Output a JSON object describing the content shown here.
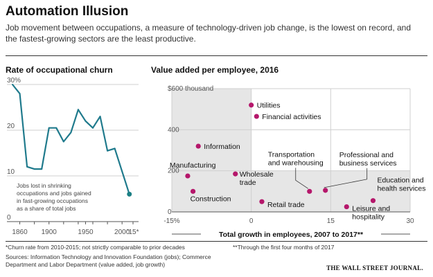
{
  "title": "Automation Illusion",
  "subtitle": "Job movement between occupations, a measure of technology-driven job change, is the lowest on record, and the fastest-growing sectors are the least productive.",
  "footnotes": {
    "churn": "*Churn rate from 2010-2015; not strictly comparable to prior decades",
    "growth": "**Through the first four months of 2017",
    "sources": "Sources: Information Technology and Innovation Foundation (jobs); Commerce Department and Labor Department (value added, job growth)"
  },
  "credit": "THE WALL STREET JOURNAL.",
  "chart_data": [
    {
      "type": "line",
      "title": "Rate of occupational churn",
      "x": [
        1850,
        1860,
        1870,
        1880,
        1890,
        1900,
        1910,
        1920,
        1930,
        1940,
        1950,
        1960,
        1970,
        1980,
        1990,
        2000,
        2010
      ],
      "y": [
        30,
        28,
        12,
        11.5,
        11.5,
        20.5,
        20.5,
        17.5,
        19.5,
        24.5,
        22,
        20.5,
        23,
        15.5,
        16,
        11,
        6
      ],
      "x_ticks": [
        "1860",
        "'80",
        "1900",
        "'20",
        "'40",
        "1950",
        "'60",
        "'80",
        "2000",
        "'15*"
      ],
      "y_ticks": [
        "0",
        "10",
        "20",
        "30%"
      ],
      "ylim": [
        0,
        30
      ],
      "color": "#1f7a8c",
      "end_marker_color": "#1b7f84",
      "annotation": "Jobs lost in shrinking occupations and jobs gained in fast-growing occupations as a share of total jobs"
    },
    {
      "type": "scatter",
      "title": "Value added per employee, 2016",
      "xlabel": "Total growth in employees, 2007 to 2017**",
      "x_ticks": [
        "-15%",
        "0",
        "15",
        "30"
      ],
      "y_ticks": [
        "0",
        "200",
        "400",
        "$600 thousand"
      ],
      "xlim": [
        -15,
        30
      ],
      "ylim": [
        0,
        600
      ],
      "point_color": "#b5176b",
      "shade_color": "#e6e6e6",
      "points": [
        {
          "label": "Utilities",
          "x": 0,
          "y": 520
        },
        {
          "label": "Financial activities",
          "x": 1,
          "y": 465
        },
        {
          "label": "Information",
          "x": -10,
          "y": 320
        },
        {
          "label": "Transportation and warehousing",
          "x": 11,
          "y": 100
        },
        {
          "label": "Professional and business services",
          "x": 14,
          "y": 105
        },
        {
          "label": "Manufacturing",
          "x": -12,
          "y": 175
        },
        {
          "label": "Wholesale trade",
          "x": -3,
          "y": 185
        },
        {
          "label": "Construction",
          "x": -11,
          "y": 100
        },
        {
          "label": "Retail trade",
          "x": 2,
          "y": 50
        },
        {
          "label": "Education and health services",
          "x": 23,
          "y": 55
        },
        {
          "label": "Leisure and hospitality",
          "x": 18,
          "y": 25
        }
      ]
    }
  ]
}
